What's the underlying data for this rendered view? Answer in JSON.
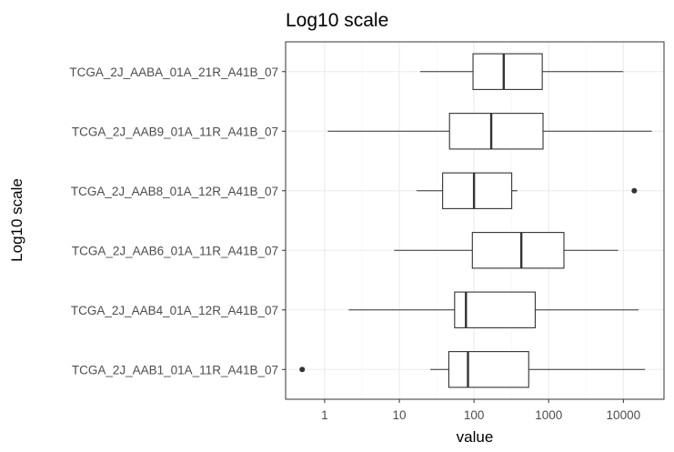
{
  "chart_data": {
    "type": "boxplot",
    "orientation": "horizontal",
    "title": "Log10 scale",
    "xlabel": "value",
    "ylabel": "Log10 scale",
    "x_scale": "log10",
    "xlim": [
      0.3,
      35000
    ],
    "x_ticks": [
      1,
      10,
      100,
      1000,
      10000
    ],
    "x_tick_labels": [
      "1",
      "10",
      "100",
      "1000",
      "10000"
    ],
    "grid": true,
    "theme": "bw",
    "colors": {
      "box_fill": "#ffffff",
      "box_stroke": "#333333",
      "grid_major": "#ebebeb",
      "grid_minor": "#f5f5f5",
      "panel_border": "#333333"
    },
    "categories": [
      "TCGA_2J_AABA_01A_21R_A41B_07",
      "TCGA_2J_AAB9_01A_11R_A41B_07",
      "TCGA_2J_AAB8_01A_12R_A41B_07",
      "TCGA_2J_AAB6_01A_11R_A41B_07",
      "TCGA_2J_AAB4_01A_12R_A41B_07",
      "TCGA_2J_AAB1_01A_11R_A41B_07"
    ],
    "boxes": [
      {
        "category": "TCGA_2J_AABA_01A_21R_A41B_07",
        "whisker_low": 19,
        "q1": 97,
        "median": 250,
        "q3": 820,
        "whisker_high": 10000,
        "outliers": []
      },
      {
        "category": "TCGA_2J_AAB9_01A_11R_A41B_07",
        "whisker_low": 1.1,
        "q1": 47,
        "median": 170,
        "q3": 840,
        "whisker_high": 24000,
        "outliers": []
      },
      {
        "category": "TCGA_2J_AAB8_01A_12R_A41B_07",
        "whisker_low": 17,
        "q1": 38,
        "median": 100,
        "q3": 320,
        "whisker_high": 380,
        "outliers": [
          14000
        ]
      },
      {
        "category": "TCGA_2J_AAB6_01A_11R_A41B_07",
        "whisker_low": 8.5,
        "q1": 95,
        "median": 430,
        "q3": 1600,
        "whisker_high": 8500,
        "outliers": []
      },
      {
        "category": "TCGA_2J_AAB4_01A_12R_A41B_07",
        "whisker_low": 2.1,
        "q1": 55,
        "median": 78,
        "q3": 660,
        "whisker_high": 16000,
        "outliers": []
      },
      {
        "category": "TCGA_2J_AAB1_01A_11R_A41B_07",
        "whisker_low": 26,
        "q1": 46,
        "median": 83,
        "q3": 540,
        "whisker_high": 19500,
        "outliers": [
          0.5
        ]
      }
    ]
  }
}
